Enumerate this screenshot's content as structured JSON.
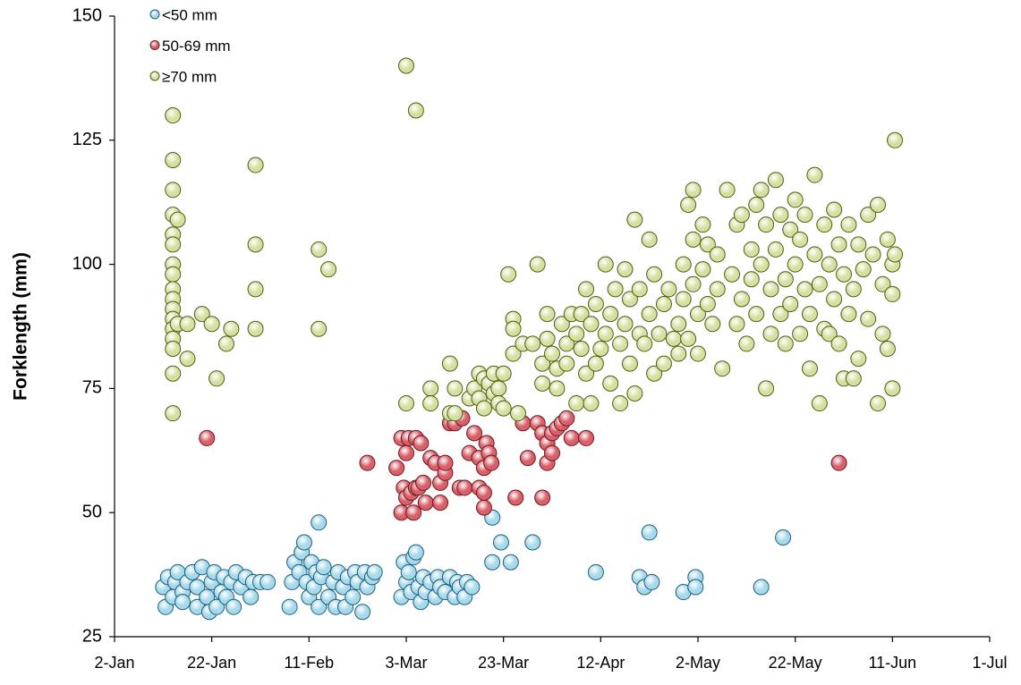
{
  "chart_data": {
    "type": "scatter",
    "y_label": "Forklength (mm)",
    "xlim": [
      2,
      182
    ],
    "ylim": [
      25,
      150
    ],
    "xticks": [
      {
        "value": 2,
        "label": "2-Jan"
      },
      {
        "value": 22,
        "label": "22-Jan"
      },
      {
        "value": 42,
        "label": "11-Feb"
      },
      {
        "value": 62,
        "label": "3-Mar"
      },
      {
        "value": 82,
        "label": "23-Mar"
      },
      {
        "value": 102,
        "label": "12-Apr"
      },
      {
        "value": 122,
        "label": "2-May"
      },
      {
        "value": 142,
        "label": "22-May"
      },
      {
        "value": 162,
        "label": "11-Jun"
      },
      {
        "value": 182,
        "label": "1-Jul"
      }
    ],
    "yticks": [
      25,
      50,
      75,
      100,
      125,
      150
    ],
    "legend": "top-left",
    "series": [
      {
        "name": "<50 mm",
        "color": "#a6d9ea",
        "edge_color": "#1f5f7f",
        "x": [
          12,
          12.5,
          13,
          14,
          14.5,
          15,
          16,
          16,
          17,
          18,
          19,
          19,
          20,
          21,
          21.5,
          22,
          22.5,
          23,
          24,
          24.5,
          25,
          26,
          26.5,
          27,
          28,
          29,
          30,
          30.5,
          32,
          33.5,
          38,
          38.5,
          39,
          40,
          40.5,
          41,
          41.5,
          42,
          42.5,
          43,
          43.5,
          44,
          44.5,
          45,
          46,
          47,
          47.5,
          48,
          49,
          49.5,
          50,
          51,
          51.5,
          52,
          53,
          53.5,
          54,
          55,
          55.5,
          61,
          61.5,
          62,
          62.5,
          63,
          63.5,
          64,
          64.5,
          65,
          65.5,
          66,
          67,
          68,
          68.5,
          69,
          70,
          71,
          72,
          72.5,
          73,
          74,
          74.5,
          75.5,
          44,
          79.7,
          79.7,
          81.5,
          83.5,
          88,
          101,
          110,
          112,
          111,
          112.5,
          119,
          121.5,
          121.5,
          135,
          139.5
        ],
        "values": [
          35,
          31,
          37,
          33,
          36,
          38,
          34,
          32,
          36,
          38,
          31,
          35,
          39,
          33,
          30,
          36,
          38,
          31,
          34,
          37,
          33,
          36,
          31,
          38,
          35,
          37,
          33,
          36,
          36,
          36,
          31,
          36,
          40,
          38,
          42,
          44,
          36,
          33,
          40,
          35,
          38,
          31,
          37,
          39,
          33,
          36,
          31,
          38,
          35,
          31,
          37,
          33,
          38,
          36,
          30,
          38,
          35,
          37,
          38,
          33,
          40,
          36,
          38,
          34,
          41,
          42,
          35,
          32,
          37,
          34,
          36,
          33,
          37,
          35,
          34,
          37,
          33,
          36,
          35,
          33,
          36,
          35,
          48,
          49,
          40,
          44,
          40,
          44,
          38,
          37,
          46,
          35,
          36,
          34,
          37,
          35,
          35,
          45
        ]
      },
      {
        "name": "50-69 mm",
        "color": "#d95f69",
        "edge_color": "#6e1a20",
        "x": [
          21,
          54,
          60,
          61,
          61,
          61.5,
          62,
          62,
          62.5,
          63,
          63.5,
          64,
          64,
          64.5,
          65,
          65.5,
          66,
          67,
          68,
          69,
          69,
          70,
          70,
          71,
          72,
          73,
          73.5,
          74,
          75,
          76,
          77,
          77,
          78,
          78,
          78,
          78.5,
          79,
          79.5,
          84.5,
          86,
          87,
          89,
          90,
          90,
          91,
          91,
          92,
          92,
          93,
          94,
          95,
          96,
          99,
          151
        ],
        "values": [
          65,
          60,
          59,
          50,
          65,
          55,
          53,
          62,
          65,
          54,
          50,
          65,
          55,
          55,
          64,
          56,
          52,
          61,
          60,
          52,
          56,
          58,
          60,
          68,
          68,
          55,
          69,
          55,
          62,
          66,
          55,
          61,
          51,
          54,
          59,
          64,
          62,
          60,
          53,
          68,
          61,
          68,
          66,
          53,
          64,
          60,
          66,
          62,
          67,
          68,
          69,
          65,
          65,
          60
        ]
      },
      {
        "name": "≥70 mm",
        "color": "#d5e0a0",
        "edge_color": "#4f5f17",
        "x": [
          14,
          14,
          14,
          14,
          14,
          14,
          14,
          14,
          14,
          14,
          14,
          14,
          14,
          14,
          14,
          14,
          14,
          15,
          15,
          17,
          17,
          20,
          22,
          23,
          25,
          26,
          31,
          31,
          31,
          31,
          44,
          44,
          46,
          62,
          64,
          62,
          67,
          67,
          71,
          71,
          72,
          72,
          75,
          76,
          77,
          77,
          78,
          78,
          79,
          80,
          80,
          81,
          81,
          82,
          82,
          83,
          84,
          84,
          84,
          85,
          86,
          89,
          88,
          90,
          90,
          91,
          91,
          92,
          93,
          93,
          94,
          95,
          95,
          96,
          97,
          97,
          98,
          98,
          99,
          99,
          100,
          100,
          101,
          101,
          102,
          103,
          103,
          104,
          104,
          105,
          106,
          106,
          107,
          107,
          108,
          108,
          109,
          109,
          110,
          110,
          111,
          112,
          112,
          113,
          113,
          114,
          115,
          115,
          116,
          117,
          118,
          118,
          119,
          119,
          120,
          120,
          121,
          121,
          121,
          122,
          122,
          123,
          123,
          124,
          124,
          125,
          126,
          126,
          127,
          128,
          129,
          130,
          130,
          131,
          131,
          132,
          133,
          133,
          134,
          134,
          135,
          135,
          136,
          136,
          137,
          137,
          138,
          138,
          139,
          139,
          140,
          140,
          141,
          141,
          142,
          142,
          143,
          143,
          144,
          144,
          145,
          145,
          146,
          146,
          147,
          147,
          148,
          148,
          149,
          149,
          150,
          150,
          151,
          151,
          152,
          152,
          153,
          153,
          154,
          154,
          155,
          155,
          156,
          157,
          157,
          158,
          159,
          159,
          160,
          160,
          161,
          161,
          162,
          162,
          162,
          162.5,
          162.5
        ],
        "values": [
          130,
          121,
          115,
          110,
          106,
          104,
          100,
          98,
          95,
          93,
          91,
          89,
          87,
          85,
          83,
          78,
          70,
          109,
          88,
          81,
          88,
          90,
          88,
          77,
          84,
          87,
          120,
          104,
          95,
          87,
          103,
          87,
          99,
          140,
          131,
          72,
          75,
          72,
          80,
          70,
          70,
          75,
          73,
          75,
          78,
          73,
          77,
          71,
          76,
          78,
          74,
          75,
          72,
          71,
          78,
          98,
          89,
          87,
          82,
          70,
          84,
          100,
          84,
          76,
          80,
          90,
          85,
          82,
          79,
          75,
          88,
          84,
          80,
          90,
          86,
          72,
          83,
          90,
          95,
          78,
          88,
          72,
          92,
          80,
          83,
          100,
          86,
          90,
          76,
          95,
          84,
          72,
          99,
          88,
          80,
          93,
          74,
          109,
          86,
          95,
          84,
          105,
          90,
          78,
          98,
          86,
          92,
          80,
          95,
          85,
          88,
          82,
          100,
          93,
          112,
          85,
          115,
          105,
          96,
          90,
          82,
          99,
          108,
          104,
          92,
          88,
          95,
          102,
          79,
          115,
          98,
          108,
          88,
          110,
          93,
          84,
          103,
          97,
          112,
          90,
          115,
          100,
          75,
          108,
          95,
          86,
          117,
          103,
          90,
          110,
          97,
          84,
          107,
          92,
          113,
          100,
          86,
          105,
          95,
          110,
          90,
          79,
          118,
          102,
          72,
          96,
          108,
          87,
          100,
          86,
          111,
          93,
          84,
          104,
          77,
          98,
          90,
          108,
          77,
          95,
          104,
          81,
          99,
          110,
          89,
          102,
          72,
          112,
          96,
          86,
          83,
          105,
          100,
          75,
          94,
          125,
          102
        ]
      }
    ]
  }
}
